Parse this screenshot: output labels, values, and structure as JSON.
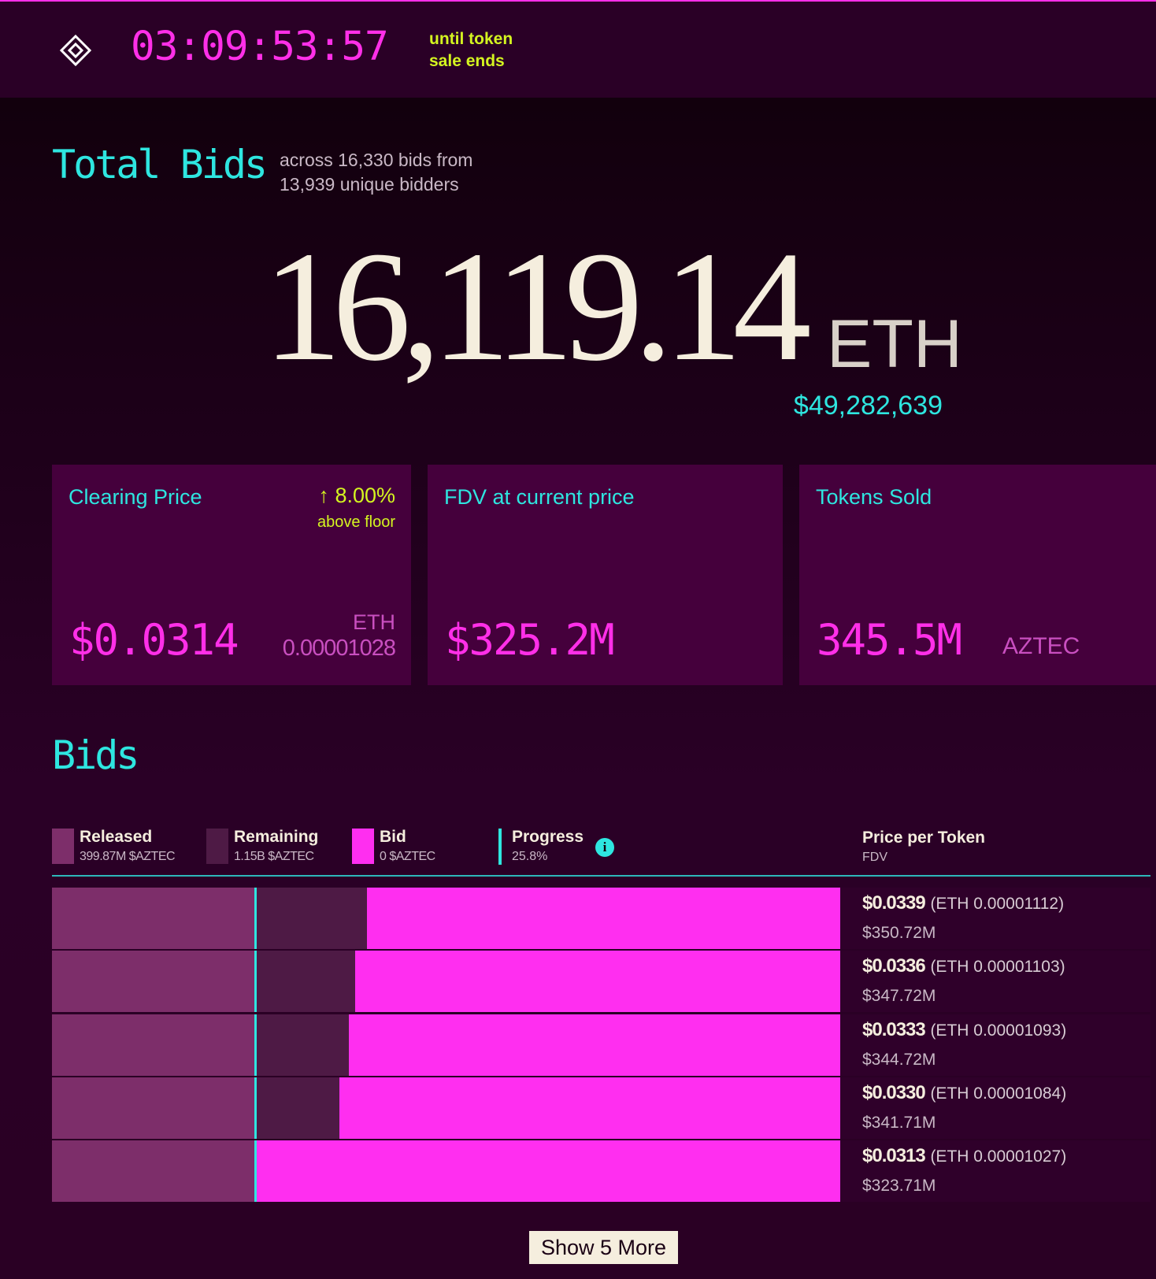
{
  "header": {
    "countdown": "03:09:53:57",
    "caption_line1": "until token",
    "caption_line2": "sale ends"
  },
  "summary": {
    "title": "Total Bids",
    "subtitle_line1": "across 16,330 bids from",
    "subtitle_line2": "13,939 unique bidders",
    "amount": "16,119.14",
    "unit": "ETH",
    "usd": "$49,282,639"
  },
  "cards": [
    {
      "title": "Clearing Price",
      "change": "↑ 8.00%",
      "change_note": "above floor",
      "value": "$0.0314",
      "alt_unit": "ETH",
      "alt_value": "0.00001028"
    },
    {
      "title": "FDV at current price",
      "value": "$325.2M"
    },
    {
      "title": "Tokens Sold",
      "value": "345.5M",
      "unit": "AZTEC"
    }
  ],
  "bids": {
    "title": "Bids",
    "legend": [
      {
        "label": "Released",
        "detail": "399.87M $AZTEC",
        "color": "#7d2e6a"
      },
      {
        "label": "Remaining",
        "detail": "1.15B $AZTEC",
        "color": "#4e1a45"
      },
      {
        "label": "Bid",
        "detail": "0 $AZTEC",
        "color": "#ff2ef0"
      }
    ],
    "progress": {
      "label": "Progress",
      "detail": "25.8%",
      "value": 25.8,
      "color": "#2ee6e0"
    },
    "column_title": "Price per Token",
    "column_subtitle": "FDV",
    "xlim": [
      0,
      100
    ],
    "rows": [
      {
        "price": "$0.0339",
        "eth": "(ETH 0.00001112)",
        "fdv": "$350.72M",
        "released": 25.8,
        "remaining": 14.2,
        "bid": 60.0
      },
      {
        "price": "$0.0336",
        "eth": "(ETH 0.00001103)",
        "fdv": "$347.72M",
        "released": 25.8,
        "remaining": 12.7,
        "bid": 61.5
      },
      {
        "price": "$0.0333",
        "eth": "(ETH 0.00001093)",
        "fdv": "$344.72M",
        "released": 25.8,
        "remaining": 11.9,
        "bid": 62.3
      },
      {
        "price": "$0.0330",
        "eth": "(ETH 0.00001084)",
        "fdv": "$341.71M",
        "released": 25.8,
        "remaining": 10.7,
        "bid": 63.5
      },
      {
        "price": "$0.0313",
        "eth": "(ETH 0.00001027)",
        "fdv": "$323.71M",
        "released": 25.8,
        "remaining": 0,
        "bid": 74.2
      }
    ],
    "button": "Show 5 More"
  }
}
